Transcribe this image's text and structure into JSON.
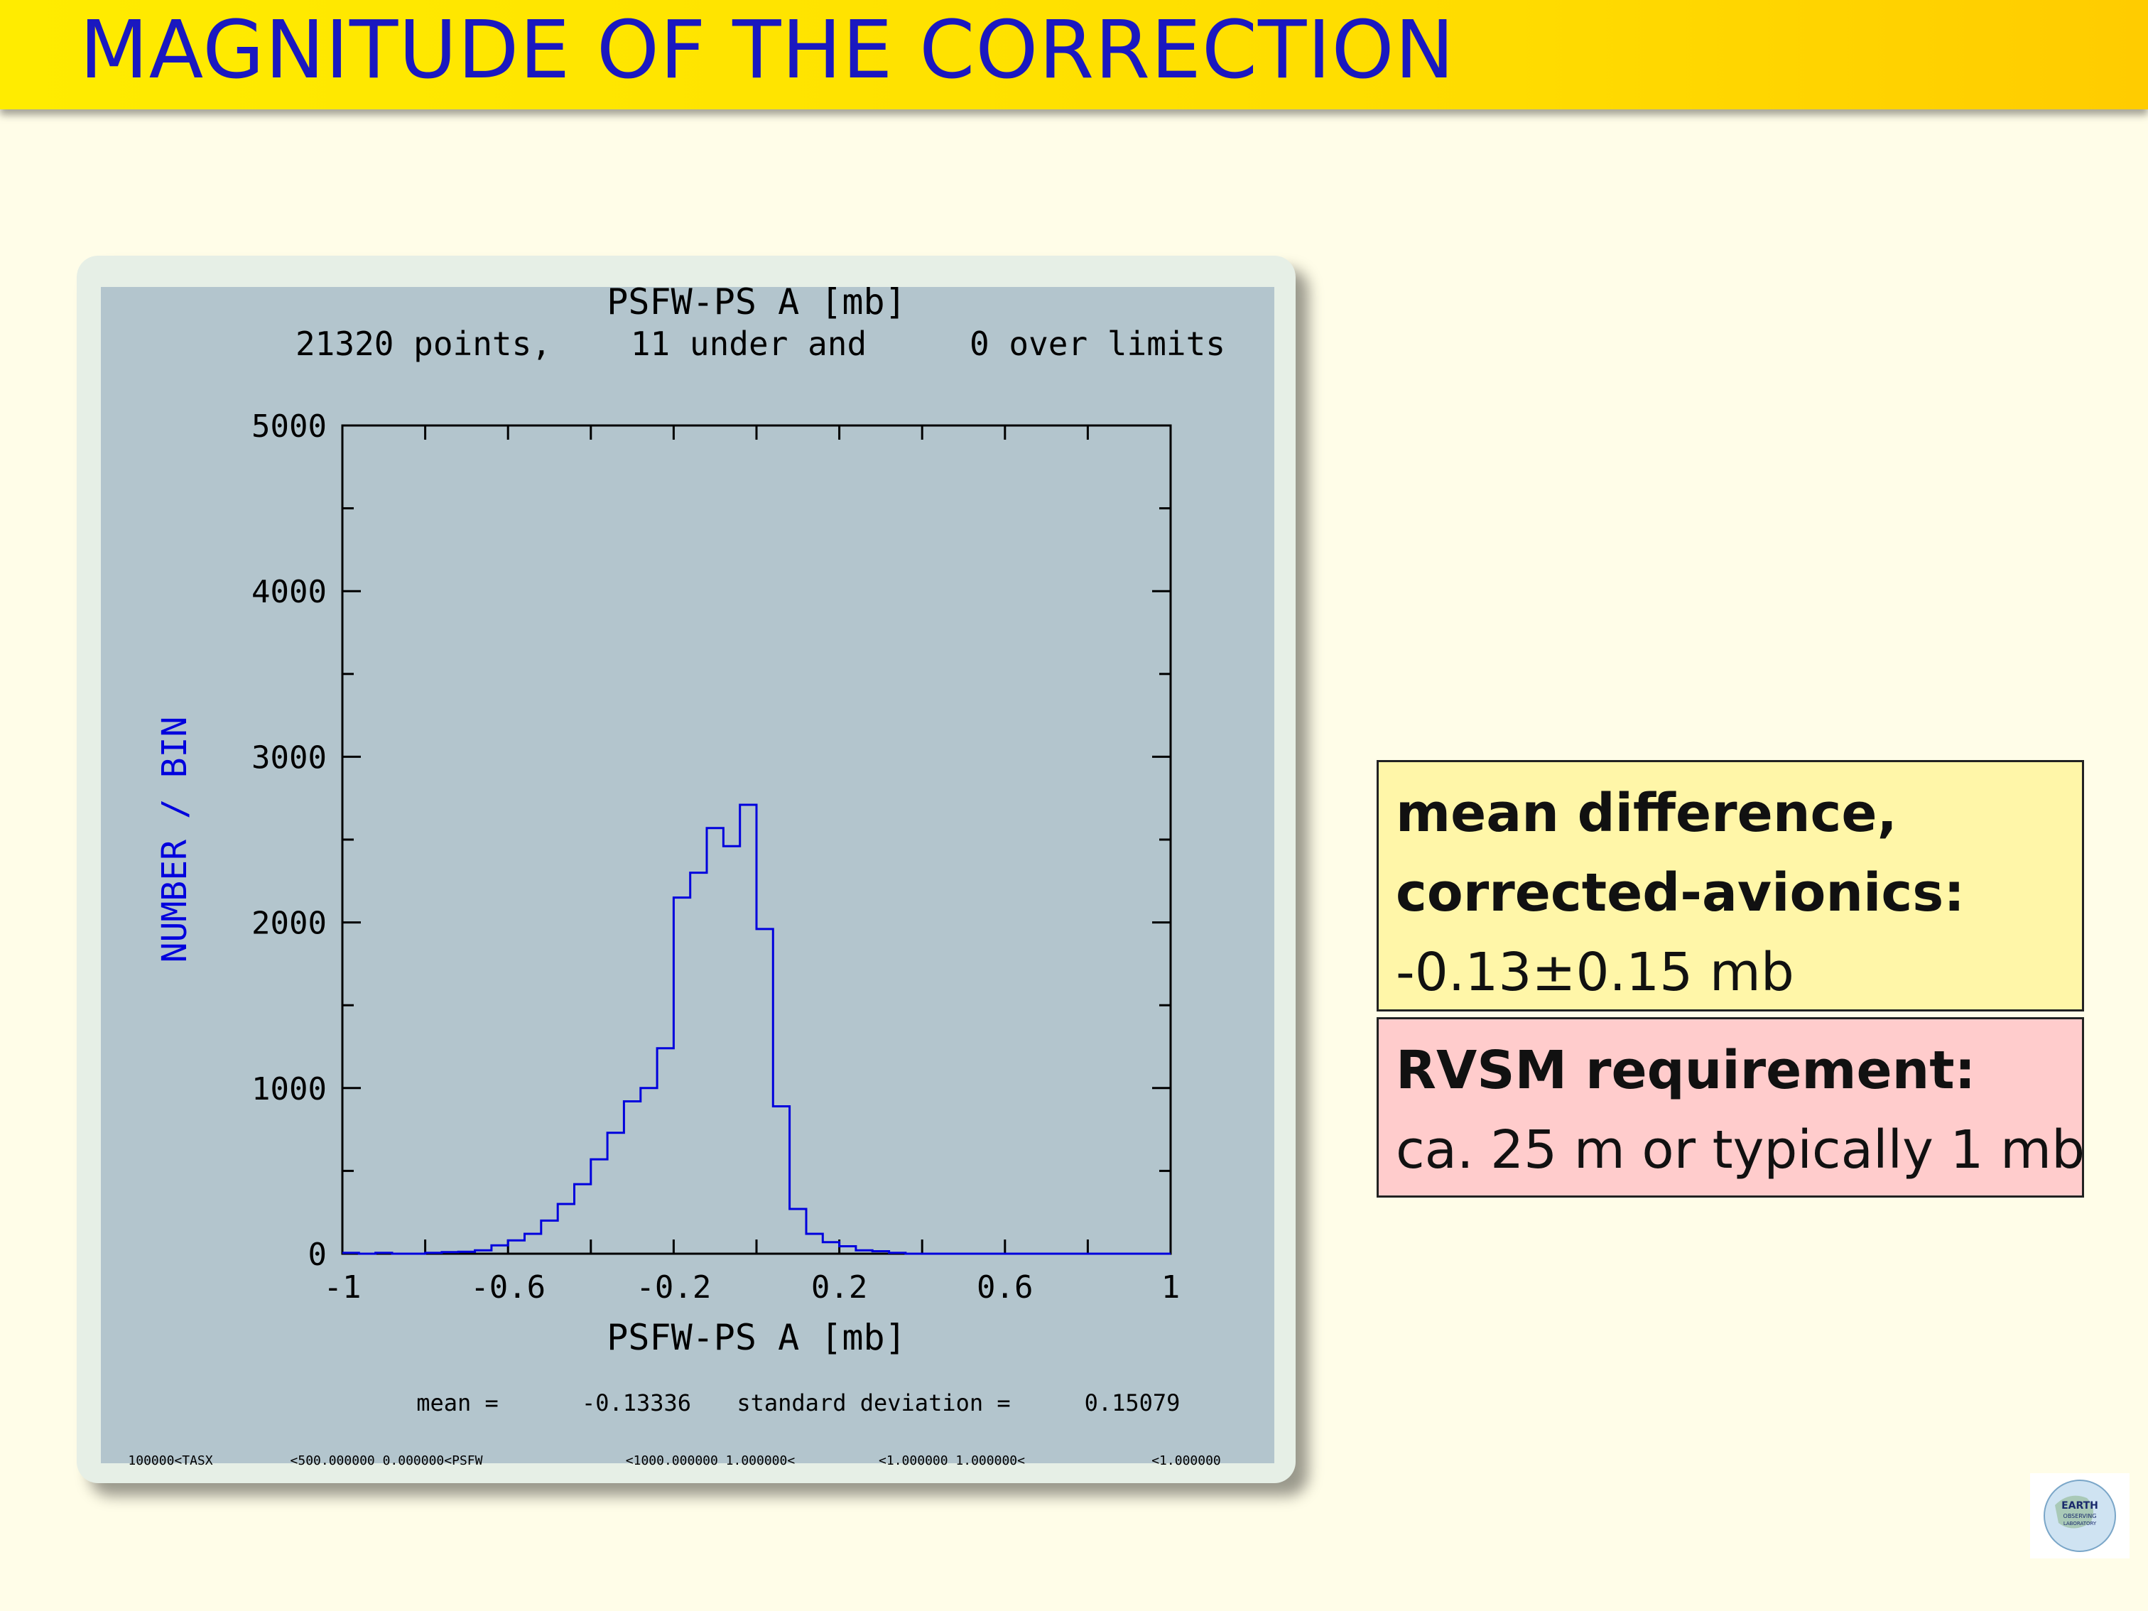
{
  "slide": {
    "title": "MAGNITUDE OF THE CORRECTION"
  },
  "info_boxes": {
    "mean_box": {
      "line1": "mean difference,",
      "line2": "corrected-avionics:",
      "value": "-0.13±0.15 mb"
    },
    "rvsm_box": {
      "heading": "RVSM requirement:",
      "text": "ca. 25 m or typically 1 mb"
    }
  },
  "logo": {
    "text_line1": "EARTH",
    "text_line2": "OBSERVING",
    "text_line3": "LABORATORY"
  },
  "colors": {
    "title_text": "#1a18c0",
    "histogram_line": "#0000dd",
    "ylabel_text": "#0000dd",
    "plot_background": "#b3c5cd"
  },
  "chart_data": {
    "type": "bar",
    "subtype": "step-histogram",
    "title": "PSFW-PS A [mb]",
    "subtitle": {
      "points": "21320 points,",
      "under": "11 under and",
      "over": "0 over limits"
    },
    "xlabel": "PSFW-PS A [mb]",
    "ylabel": "NUMBER / BIN",
    "xlim": [
      -1,
      1
    ],
    "ylim": [
      0,
      5000
    ],
    "bin_width": 0.04,
    "bin_start": -1.0,
    "x_ticks": [
      -1,
      -0.6,
      -0.2,
      0.2,
      0.6,
      1
    ],
    "x_tick_labels": [
      "-1",
      "-0.6",
      "-0.2",
      "0.2",
      "0.6",
      "1"
    ],
    "y_ticks": [
      0,
      1000,
      2000,
      3000,
      4000,
      5000
    ],
    "y_tick_labels": [
      "0",
      "1000",
      "2000",
      "3000",
      "4000",
      "5000"
    ],
    "values": [
      5,
      0,
      5,
      0,
      0,
      5,
      10,
      12,
      20,
      50,
      80,
      120,
      200,
      300,
      420,
      570,
      730,
      920,
      1000,
      1240,
      2150,
      2300,
      2570,
      2460,
      2710,
      1960,
      890,
      270,
      120,
      70,
      45,
      20,
      15,
      5,
      0,
      0,
      0,
      0,
      0,
      0,
      0,
      0,
      0,
      0,
      0,
      0,
      0,
      0,
      0,
      0
    ],
    "stats": {
      "mean_label": "mean =",
      "mean_value": "-0.13336",
      "sd_label": "standard deviation =",
      "sd_value": "0.15079"
    },
    "footer_limits": [
      "100000<TASX",
      "<500.000000  0.000000<PSFW",
      "<1000.000000   1.000000<",
      "<1.000000   1.000000<",
      "<1.000000"
    ]
  }
}
